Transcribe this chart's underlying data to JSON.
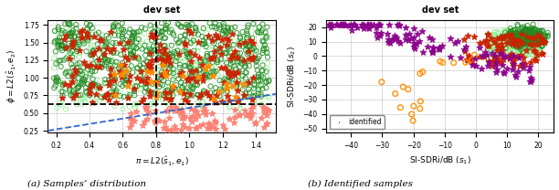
{
  "title": "dev set",
  "plot_a_xlabel": "$\\pi = L2(\\hat{s}_1, e_1)$",
  "plot_a_ylabel": "$\\phi = L2(\\hat{s}_1, e_2)$",
  "plot_a_xlim": [
    0.15,
    1.52
  ],
  "plot_a_ylim": [
    0.22,
    1.82
  ],
  "plot_a_xticks": [
    0.2,
    0.4,
    0.6,
    0.8,
    1.0,
    1.2,
    1.4
  ],
  "plot_a_yticks": [
    0.25,
    0.5,
    0.75,
    1.0,
    1.25,
    1.5,
    1.75
  ],
  "plot_b_xlabel": "SI-SDRi/dB ($s_1$)",
  "plot_b_ylabel": "SI-SDRi/dB ($s_2$)",
  "plot_b_xlim": [
    -48,
    25
  ],
  "plot_b_ylim": [
    -53,
    25
  ],
  "plot_b_xticks": [
    -40,
    -30,
    -20,
    -10,
    0,
    10,
    20
  ],
  "plot_b_yticks": [
    -50,
    -40,
    -30,
    -20,
    -10,
    0,
    10,
    20
  ],
  "caption_a": "(a) Samples’ distribution",
  "caption_b": "(b) Identified samples",
  "legend_label": "identified",
  "colors": {
    "dark_green": "#228B22",
    "light_green": "#90EE90",
    "red": "#CC2200",
    "salmon": "#FA8072",
    "orange": "#FF8C00",
    "purple": "#8B008B"
  },
  "seed": 42
}
